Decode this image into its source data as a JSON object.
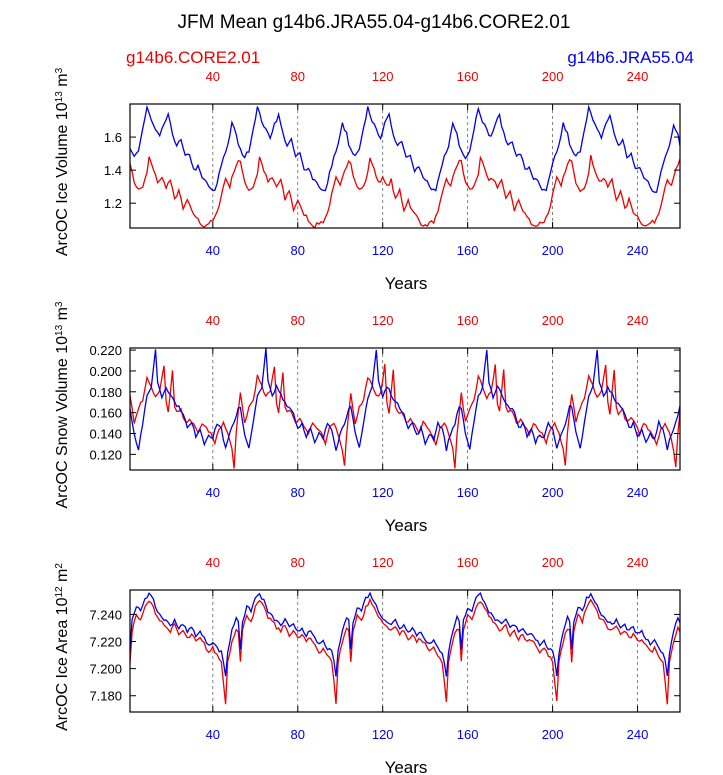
{
  "title": "JFM Mean g14b6.JRA55.04-g14b6.CORE2.01",
  "legend": {
    "left_label": "g14b6.CORE2.01",
    "right_label": "g14b6.JRA55.04",
    "left_color": "#ee0000",
    "right_color": "#0000ee"
  },
  "chart_data": [
    {
      "type": "line",
      "panel": "ice-volume",
      "ylabel_base": "ArcOC Ice Volume 10",
      "ylabel_exp": "13",
      "ylabel_unit": "m",
      "ylabel_unit_exp": "3",
      "xlabel": "Years",
      "xlim": [
        1,
        260
      ],
      "ylim": [
        1.05,
        1.8
      ],
      "yticks": [
        1.2,
        1.4,
        1.6
      ],
      "ytick_labels": [
        "1.2",
        "1.4",
        "1.6"
      ],
      "xticks": [
        40,
        80,
        120,
        160,
        200,
        240
      ],
      "xtick_labels": [
        "40",
        "80",
        "120",
        "160",
        "200",
        "240"
      ],
      "cycle_len": 52,
      "series": [
        {
          "name": "g14b6.CORE2.01",
          "color": "#ee0000",
          "anchors": [
            [
              0,
              1.45
            ],
            [
              1,
              1.38
            ],
            [
              2,
              1.33
            ],
            [
              4,
              1.28
            ],
            [
              6,
              1.3
            ],
            [
              8,
              1.38
            ],
            [
              9,
              1.48
            ],
            [
              11,
              1.4
            ],
            [
              13,
              1.33
            ],
            [
              15,
              1.35
            ],
            [
              17,
              1.3
            ],
            [
              19,
              1.34
            ],
            [
              21,
              1.22
            ],
            [
              23,
              1.28
            ],
            [
              25,
              1.16
            ],
            [
              27,
              1.22
            ],
            [
              29,
              1.15
            ],
            [
              31,
              1.12
            ],
            [
              33,
              1.08
            ],
            [
              35,
              1.06
            ],
            [
              37,
              1.08
            ],
            [
              39,
              1.09
            ],
            [
              41,
              1.14
            ],
            [
              43,
              1.25
            ],
            [
              45,
              1.35
            ],
            [
              47,
              1.3
            ],
            [
              49,
              1.4
            ],
            [
              51,
              1.46
            ]
          ]
        },
        {
          "name": "g14b6.JRA55.04",
          "color": "#0000ee",
          "anchors": [
            [
              0,
              1.52
            ],
            [
              2,
              1.48
            ],
            [
              4,
              1.52
            ],
            [
              6,
              1.65
            ],
            [
              8,
              1.78
            ],
            [
              10,
              1.7
            ],
            [
              12,
              1.64
            ],
            [
              14,
              1.6
            ],
            [
              16,
              1.68
            ],
            [
              18,
              1.73
            ],
            [
              20,
              1.62
            ],
            [
              22,
              1.55
            ],
            [
              24,
              1.58
            ],
            [
              26,
              1.48
            ],
            [
              28,
              1.5
            ],
            [
              30,
              1.4
            ],
            [
              32,
              1.42
            ],
            [
              34,
              1.35
            ],
            [
              36,
              1.33
            ],
            [
              38,
              1.28
            ],
            [
              40,
              1.27
            ],
            [
              42,
              1.38
            ],
            [
              44,
              1.48
            ],
            [
              46,
              1.55
            ],
            [
              48,
              1.68
            ],
            [
              50,
              1.62
            ],
            [
              51,
              1.55
            ]
          ]
        }
      ]
    },
    {
      "type": "line",
      "panel": "snow-volume",
      "ylabel_base": "ArcOC Snow Volume 10",
      "ylabel_exp": "13",
      "ylabel_unit": "m",
      "ylabel_unit_exp": "3",
      "xlabel": "Years",
      "xlim": [
        1,
        260
      ],
      "ylim": [
        0.105,
        0.222
      ],
      "yticks": [
        0.12,
        0.14,
        0.16,
        0.18,
        0.2,
        0.22
      ],
      "ytick_labels": [
        "0.120",
        "0.140",
        "0.160",
        "0.180",
        "0.200",
        "0.220"
      ],
      "xticks": [
        40,
        80,
        120,
        160,
        200,
        240
      ],
      "xtick_labels": [
        "40",
        "80",
        "120",
        "160",
        "200",
        "240"
      ],
      "cycle_len": 52,
      "series": [
        {
          "name": "g14b6.CORE2.01",
          "color": "#ee0000",
          "anchors": [
            [
              0,
              0.178
            ],
            [
              2,
              0.15
            ],
            [
              4,
              0.165
            ],
            [
              6,
              0.172
            ],
            [
              8,
              0.195
            ],
            [
              10,
              0.185
            ],
            [
              12,
              0.175
            ],
            [
              14,
              0.18
            ],
            [
              16,
              0.205
            ],
            [
              17,
              0.17
            ],
            [
              18,
              0.16
            ],
            [
              20,
              0.2
            ],
            [
              21,
              0.165
            ],
            [
              22,
              0.16
            ],
            [
              24,
              0.162
            ],
            [
              26,
              0.15
            ],
            [
              28,
              0.155
            ],
            [
              30,
              0.148
            ],
            [
              32,
              0.14
            ],
            [
              34,
              0.15
            ],
            [
              36,
              0.145
            ],
            [
              38,
              0.14
            ],
            [
              40,
              0.13
            ],
            [
              42,
              0.145
            ],
            [
              44,
              0.15
            ],
            [
              46,
              0.14
            ],
            [
              48,
              0.125
            ],
            [
              49,
              0.108
            ],
            [
              50,
              0.14
            ],
            [
              51,
              0.16
            ]
          ]
        },
        {
          "name": "g14b6.JRA55.04",
          "color": "#0000ee",
          "anchors": [
            [
              0,
              0.165
            ],
            [
              2,
              0.14
            ],
            [
              4,
              0.125
            ],
            [
              6,
              0.15
            ],
            [
              8,
              0.175
            ],
            [
              10,
              0.185
            ],
            [
              12,
              0.22
            ],
            [
              13,
              0.19
            ],
            [
              15,
              0.175
            ],
            [
              17,
              0.185
            ],
            [
              19,
              0.178
            ],
            [
              21,
              0.17
            ],
            [
              23,
              0.165
            ],
            [
              25,
              0.16
            ],
            [
              27,
              0.145
            ],
            [
              29,
              0.15
            ],
            [
              31,
              0.138
            ],
            [
              33,
              0.145
            ],
            [
              35,
              0.13
            ],
            [
              37,
              0.14
            ],
            [
              39,
              0.135
            ],
            [
              41,
              0.15
            ],
            [
              43,
              0.145
            ],
            [
              45,
              0.125
            ],
            [
              47,
              0.14
            ],
            [
              49,
              0.15
            ],
            [
              51,
              0.165
            ]
          ]
        }
      ]
    },
    {
      "type": "line",
      "panel": "ice-area",
      "ylabel_base": "ArcOC Ice Area 10",
      "ylabel_exp": "12",
      "ylabel_unit": "m",
      "ylabel_unit_exp": "2",
      "xlabel": "Years",
      "xlim": [
        1,
        260
      ],
      "ylim": [
        7.168,
        7.258
      ],
      "yticks": [
        7.18,
        7.2,
        7.22,
        7.24
      ],
      "ytick_labels": [
        "7.180",
        "7.200",
        "7.220",
        "7.240"
      ],
      "xticks": [
        40,
        80,
        120,
        160,
        200,
        240
      ],
      "xtick_labels": [
        "40",
        "80",
        "120",
        "160",
        "200",
        "240"
      ],
      "cycle_len": 52,
      "series": [
        {
          "name": "g14b6.CORE2.01",
          "color": "#ee0000",
          "anchors": [
            [
              0,
              7.205
            ],
            [
              1,
              7.228
            ],
            [
              3,
              7.24
            ],
            [
              5,
              7.235
            ],
            [
              7,
              7.245
            ],
            [
              9,
              7.25
            ],
            [
              11,
              7.245
            ],
            [
              13,
              7.238
            ],
            [
              15,
              7.235
            ],
            [
              17,
              7.23
            ],
            [
              19,
              7.228
            ],
            [
              21,
              7.232
            ],
            [
              23,
              7.225
            ],
            [
              25,
              7.228
            ],
            [
              27,
              7.222
            ],
            [
              29,
              7.225
            ],
            [
              31,
              7.22
            ],
            [
              33,
              7.222
            ],
            [
              35,
              7.218
            ],
            [
              37,
              7.212
            ],
            [
              39,
              7.215
            ],
            [
              41,
              7.21
            ],
            [
              43,
              7.205
            ],
            [
              44,
              7.19
            ],
            [
              45,
              7.175
            ],
            [
              46,
              7.205
            ],
            [
              48,
              7.22
            ],
            [
              50,
              7.23
            ],
            [
              51,
              7.228
            ]
          ]
        },
        {
          "name": "g14b6.JRA55.04",
          "color": "#0000ee",
          "anchors": [
            [
              0,
              7.215
            ],
            [
              1,
              7.235
            ],
            [
              3,
              7.245
            ],
            [
              5,
              7.243
            ],
            [
              7,
              7.252
            ],
            [
              9,
              7.255
            ],
            [
              11,
              7.25
            ],
            [
              13,
              7.242
            ],
            [
              15,
              7.238
            ],
            [
              17,
              7.235
            ],
            [
              19,
              7.232
            ],
            [
              21,
              7.236
            ],
            [
              23,
              7.23
            ],
            [
              25,
              7.232
            ],
            [
              27,
              7.228
            ],
            [
              29,
              7.23
            ],
            [
              31,
              7.225
            ],
            [
              33,
              7.227
            ],
            [
              35,
              7.222
            ],
            [
              37,
              7.218
            ],
            [
              39,
              7.22
            ],
            [
              41,
              7.215
            ],
            [
              43,
              7.212
            ],
            [
              44,
              7.205
            ],
            [
              45,
              7.195
            ],
            [
              46,
              7.212
            ],
            [
              48,
              7.228
            ],
            [
              50,
              7.238
            ],
            [
              51,
              7.235
            ]
          ]
        }
      ]
    }
  ]
}
